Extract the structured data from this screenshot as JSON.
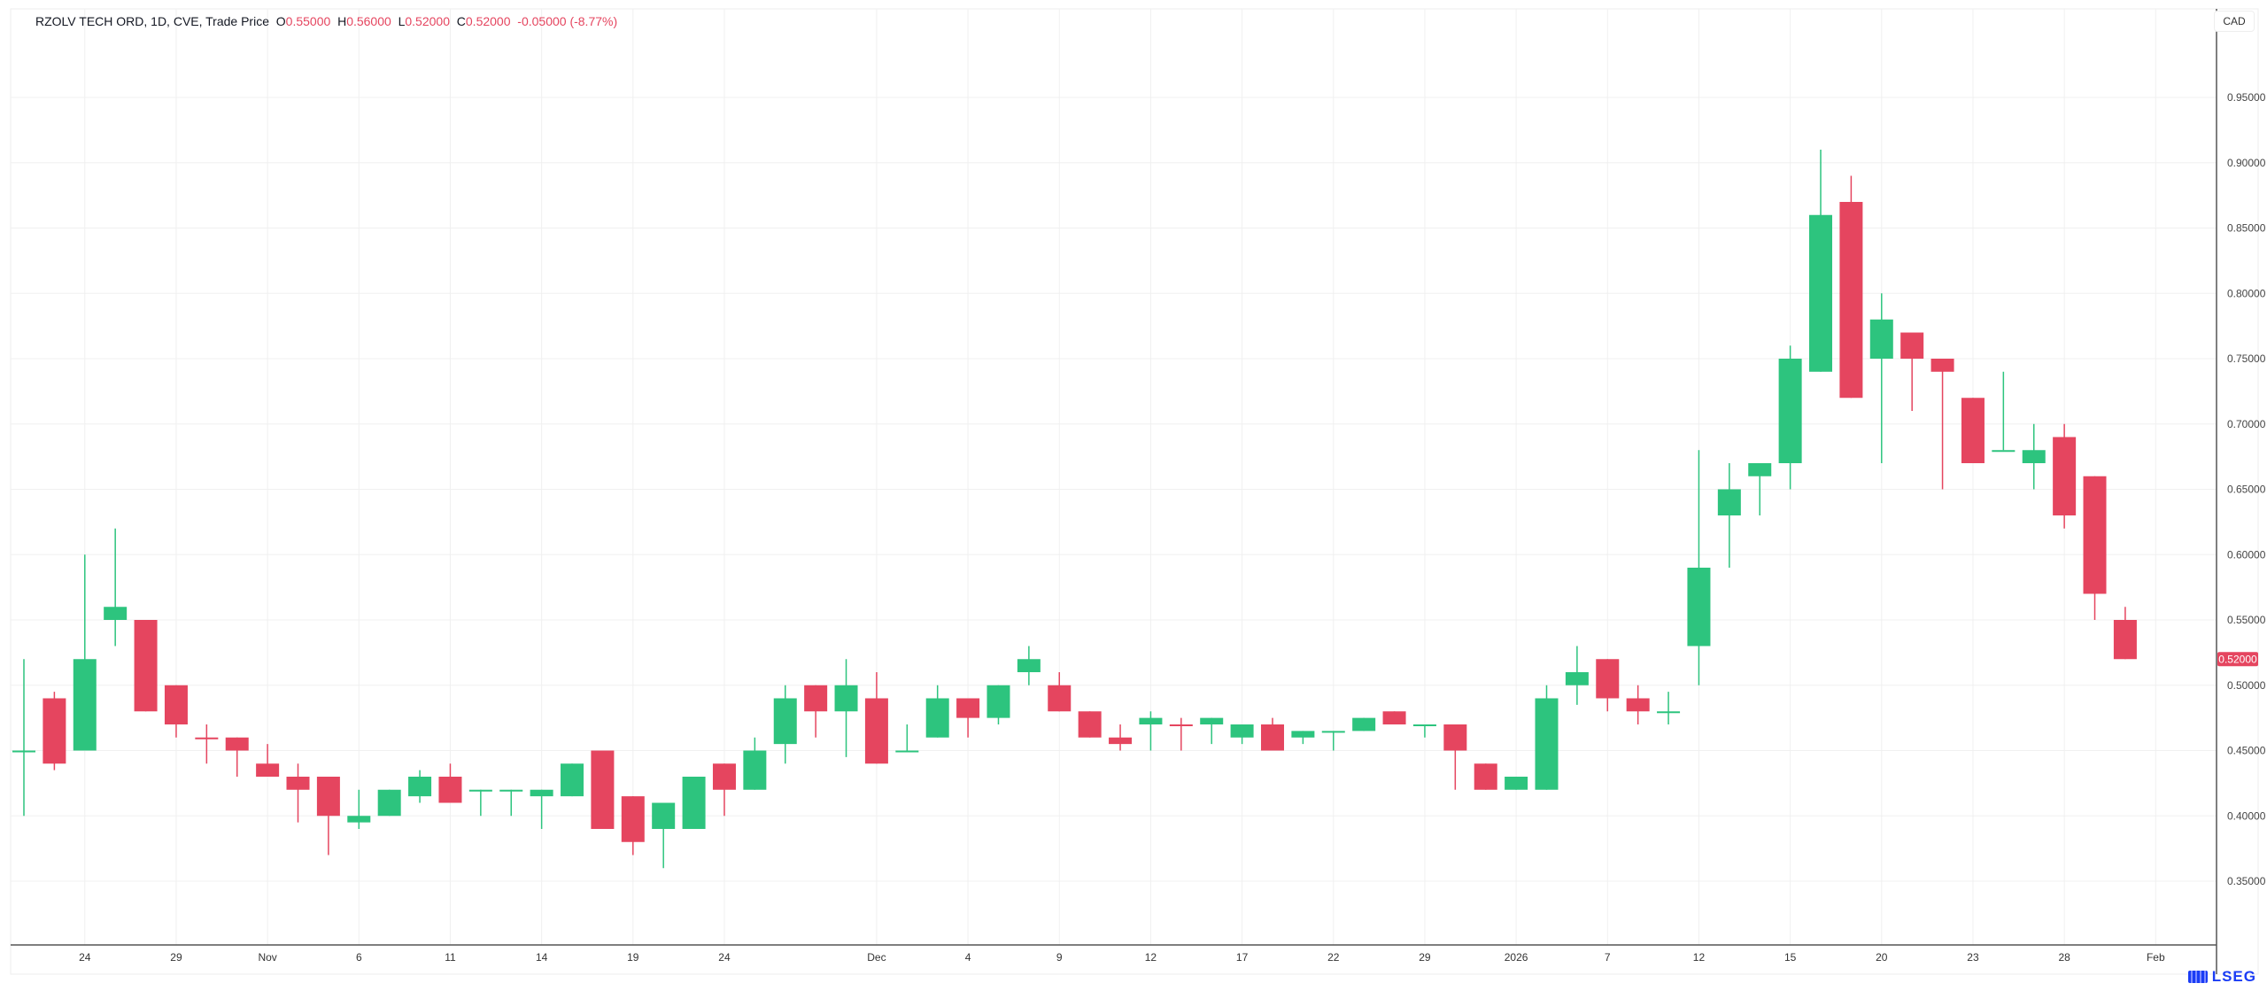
{
  "header": {
    "symbol": "RZOLV TECH ORD, 1D, CVE, Trade Price",
    "o_label": "O",
    "o": "0.55000",
    "h_label": "H",
    "h": "0.56000",
    "l_label": "L",
    "l": "0.52000",
    "c_label": "C",
    "c": "0.52000",
    "change": "-0.05000 (-8.77%)"
  },
  "currency": "CAD",
  "last_price_label": "0.52000",
  "logo": "LSEG",
  "colors": {
    "up": "#2dc47e",
    "down": "#e5455f",
    "grid": "#f0f0f0"
  },
  "chart_data": {
    "type": "candlestick",
    "title": "RZOLV TECH ORD, 1D, CVE, Trade Price",
    "ylabel": "CAD",
    "ylim": [
      0.3,
      0.98
    ],
    "y_ticks": [
      "0.35000",
      "0.40000",
      "0.45000",
      "0.50000",
      "0.55000",
      "0.60000",
      "0.65000",
      "0.70000",
      "0.75000",
      "0.80000",
      "0.85000",
      "0.90000",
      "0.95000"
    ],
    "x_ticks": [
      {
        "label": "24",
        "index": 2
      },
      {
        "label": "29",
        "index": 5
      },
      {
        "label": "Nov",
        "index": 8
      },
      {
        "label": "6",
        "index": 11
      },
      {
        "label": "11",
        "index": 14
      },
      {
        "label": "14",
        "index": 17
      },
      {
        "label": "19",
        "index": 20
      },
      {
        "label": "24",
        "index": 23
      },
      {
        "label": "Dec",
        "index": 28
      },
      {
        "label": "4",
        "index": 31
      },
      {
        "label": "9",
        "index": 34
      },
      {
        "label": "12",
        "index": 37
      },
      {
        "label": "17",
        "index": 40
      },
      {
        "label": "22",
        "index": 43
      },
      {
        "label": "29",
        "index": 46
      },
      {
        "label": "2026",
        "index": 49
      },
      {
        "label": "7",
        "index": 52
      },
      {
        "label": "12",
        "index": 55
      },
      {
        "label": "15",
        "index": 58
      },
      {
        "label": "20",
        "index": 61
      },
      {
        "label": "23",
        "index": 64
      },
      {
        "label": "28",
        "index": 67
      },
      {
        "label": "Feb",
        "index": 70
      }
    ],
    "candles_ohlc_dir": [
      [
        0.45,
        0.52,
        0.4,
        0.45,
        "u"
      ],
      [
        0.49,
        0.495,
        0.435,
        0.44,
        "d"
      ],
      [
        0.45,
        0.6,
        0.45,
        0.52,
        "u"
      ],
      [
        0.55,
        0.62,
        0.53,
        0.56,
        "u"
      ],
      [
        0.55,
        0.55,
        0.48,
        0.48,
        "d"
      ],
      [
        0.5,
        0.5,
        0.46,
        0.47,
        "d"
      ],
      [
        0.46,
        0.47,
        0.44,
        0.46,
        "d"
      ],
      [
        0.46,
        0.46,
        0.43,
        0.45,
        "d"
      ],
      [
        0.44,
        0.455,
        0.43,
        0.43,
        "d"
      ],
      [
        0.43,
        0.44,
        0.395,
        0.42,
        "d"
      ],
      [
        0.43,
        0.43,
        0.37,
        0.4,
        "d"
      ],
      [
        0.395,
        0.42,
        0.39,
        0.4,
        "u"
      ],
      [
        0.4,
        0.42,
        0.4,
        0.42,
        "u"
      ],
      [
        0.415,
        0.435,
        0.41,
        0.43,
        "u"
      ],
      [
        0.43,
        0.44,
        0.41,
        0.41,
        "d"
      ],
      [
        0.42,
        0.42,
        0.4,
        0.42,
        "u"
      ],
      [
        0.42,
        0.42,
        0.4,
        0.42,
        "u"
      ],
      [
        0.415,
        0.42,
        0.39,
        0.42,
        "u"
      ],
      [
        0.415,
        0.44,
        0.415,
        0.44,
        "u"
      ],
      [
        0.45,
        0.45,
        0.39,
        0.39,
        "d"
      ],
      [
        0.415,
        0.415,
        0.37,
        0.38,
        "d"
      ],
      [
        0.39,
        0.41,
        0.36,
        0.41,
        "u"
      ],
      [
        0.39,
        0.43,
        0.39,
        0.43,
        "u"
      ],
      [
        0.44,
        0.44,
        0.4,
        0.42,
        "d"
      ],
      [
        0.42,
        0.46,
        0.42,
        0.45,
        "u"
      ],
      [
        0.455,
        0.5,
        0.44,
        0.49,
        "u"
      ],
      [
        0.5,
        0.5,
        0.46,
        0.48,
        "d"
      ],
      [
        0.48,
        0.52,
        0.445,
        0.5,
        "u"
      ],
      [
        0.49,
        0.51,
        0.44,
        0.44,
        "d"
      ],
      [
        0.45,
        0.47,
        0.45,
        0.45,
        "u"
      ],
      [
        0.46,
        0.5,
        0.46,
        0.49,
        "u"
      ],
      [
        0.49,
        0.49,
        0.46,
        0.475,
        "d"
      ],
      [
        0.475,
        0.5,
        0.47,
        0.5,
        "u"
      ],
      [
        0.51,
        0.53,
        0.5,
        0.52,
        "u"
      ],
      [
        0.5,
        0.51,
        0.48,
        0.48,
        "d"
      ],
      [
        0.48,
        0.48,
        0.46,
        0.46,
        "d"
      ],
      [
        0.46,
        0.47,
        0.45,
        0.455,
        "d"
      ],
      [
        0.47,
        0.48,
        0.45,
        0.475,
        "u"
      ],
      [
        0.47,
        0.475,
        0.45,
        0.47,
        "d"
      ],
      [
        0.47,
        0.475,
        0.455,
        0.475,
        "u"
      ],
      [
        0.46,
        0.47,
        0.455,
        0.47,
        "u"
      ],
      [
        0.47,
        0.475,
        0.45,
        0.45,
        "d"
      ],
      [
        0.46,
        0.465,
        0.455,
        0.465,
        "u"
      ],
      [
        0.465,
        0.465,
        0.45,
        0.465,
        "u"
      ],
      [
        0.465,
        0.475,
        0.465,
        0.475,
        "u"
      ],
      [
        0.48,
        0.48,
        0.47,
        0.47,
        "d"
      ],
      [
        0.47,
        0.47,
        0.46,
        0.47,
        "u"
      ],
      [
        0.47,
        0.47,
        0.42,
        0.45,
        "d"
      ],
      [
        0.44,
        0.44,
        0.42,
        0.42,
        "d"
      ],
      [
        0.42,
        0.43,
        0.42,
        0.43,
        "u"
      ],
      [
        0.42,
        0.5,
        0.42,
        0.49,
        "u"
      ],
      [
        0.5,
        0.53,
        0.485,
        0.51,
        "u"
      ],
      [
        0.52,
        0.52,
        0.48,
        0.49,
        "d"
      ],
      [
        0.49,
        0.5,
        0.47,
        0.48,
        "d"
      ],
      [
        0.48,
        0.495,
        0.47,
        0.48,
        "u"
      ],
      [
        0.53,
        0.68,
        0.5,
        0.59,
        "u"
      ],
      [
        0.63,
        0.67,
        0.59,
        0.65,
        "u"
      ],
      [
        0.66,
        0.67,
        0.63,
        0.67,
        "u"
      ],
      [
        0.67,
        0.76,
        0.65,
        0.75,
        "u"
      ],
      [
        0.74,
        0.91,
        0.74,
        0.86,
        "u"
      ],
      [
        0.87,
        0.89,
        0.72,
        0.72,
        "d"
      ],
      [
        0.75,
        0.8,
        0.67,
        0.78,
        "u"
      ],
      [
        0.77,
        0.77,
        0.71,
        0.75,
        "d"
      ],
      [
        0.75,
        0.75,
        0.65,
        0.74,
        "d"
      ],
      [
        0.72,
        0.72,
        0.67,
        0.67,
        "d"
      ],
      [
        0.68,
        0.74,
        0.68,
        0.68,
        "u"
      ],
      [
        0.67,
        0.7,
        0.65,
        0.68,
        "u"
      ],
      [
        0.69,
        0.7,
        0.62,
        0.63,
        "d"
      ],
      [
        0.66,
        0.66,
        0.55,
        0.57,
        "d"
      ],
      [
        0.55,
        0.56,
        0.52,
        0.52,
        "d"
      ]
    ]
  }
}
